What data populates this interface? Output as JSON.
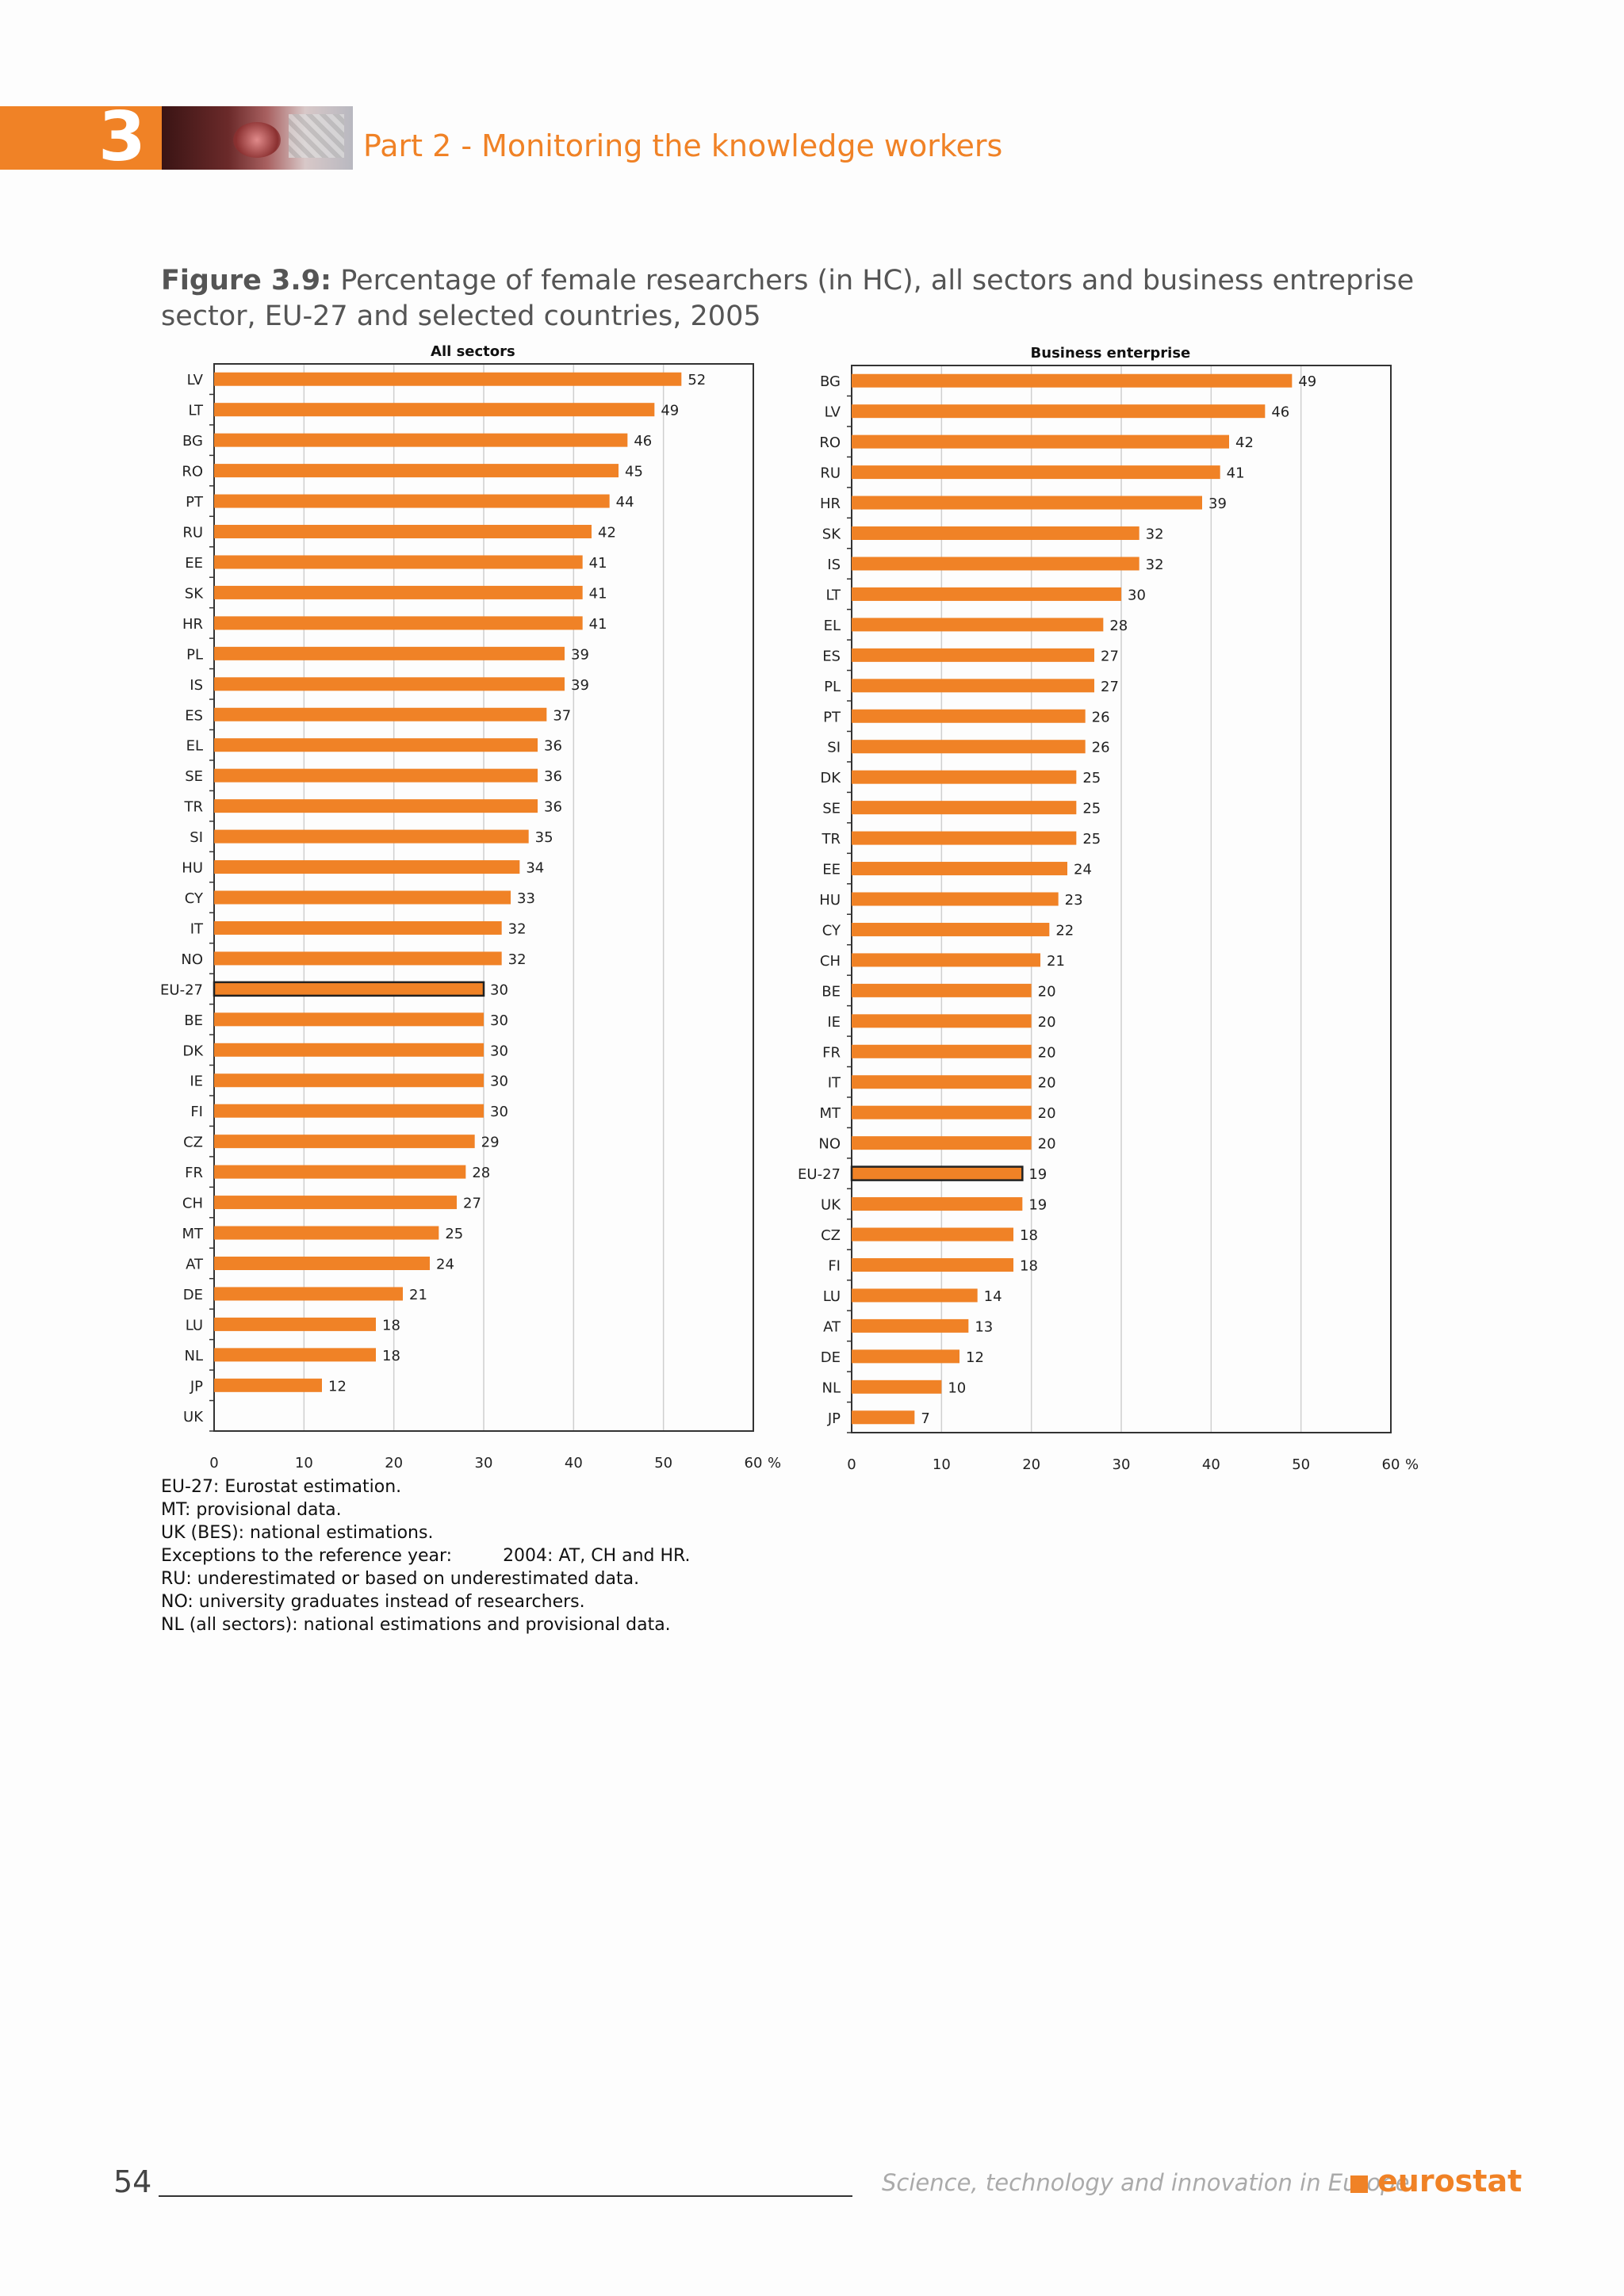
{
  "header": {
    "chapter_number": "3",
    "part_title": "Part 2 - Monitoring the knowledge workers"
  },
  "figure": {
    "number": "Figure 3.9:",
    "title": "Percentage of female researchers (in HC), all sectors and business entreprise sector, EU-27 and selected countries, 2005"
  },
  "colors": {
    "accent": "#f08226",
    "bar": "#f08226",
    "bar_highlight_border": "#222222",
    "grid": "#cfcfcf"
  },
  "chart_data": [
    {
      "type": "bar",
      "orientation": "horizontal",
      "title": "All sectors",
      "unit": "%",
      "xlim": [
        0,
        60
      ],
      "ticks": [
        "0",
        "10",
        "20",
        "30",
        "40",
        "50",
        "60"
      ],
      "grid": true,
      "highlight": "EU-27",
      "categories": [
        "LV",
        "LT",
        "BG",
        "RO",
        "PT",
        "RU",
        "EE",
        "SK",
        "HR",
        "PL",
        "IS",
        "ES",
        "EL",
        "SE",
        "TR",
        "SI",
        "HU",
        "CY",
        "IT",
        "NO",
        "EU-27",
        "BE",
        "DK",
        "IE",
        "FI",
        "CZ",
        "FR",
        "CH",
        "MT",
        "AT",
        "DE",
        "LU",
        "NL",
        "JP",
        "UK"
      ],
      "values": [
        52,
        49,
        46,
        45,
        44,
        42,
        41,
        41,
        41,
        39,
        39,
        37,
        36,
        36,
        36,
        35,
        34,
        33,
        32,
        32,
        30,
        30,
        30,
        30,
        30,
        29,
        28,
        27,
        25,
        24,
        21,
        18,
        18,
        12,
        null
      ]
    },
    {
      "type": "bar",
      "orientation": "horizontal",
      "title": "Business enterprise",
      "unit": "%",
      "xlim": [
        0,
        60
      ],
      "ticks": [
        "0",
        "10",
        "20",
        "30",
        "40",
        "50",
        "60"
      ],
      "grid": true,
      "highlight": "EU-27",
      "categories": [
        "BG",
        "LV",
        "RO",
        "RU",
        "HR",
        "SK",
        "IS",
        "LT",
        "EL",
        "ES",
        "PL",
        "PT",
        "SI",
        "DK",
        "SE",
        "TR",
        "EE",
        "HU",
        "CY",
        "CH",
        "BE",
        "IE",
        "FR",
        "IT",
        "MT",
        "NO",
        "EU-27",
        "UK",
        "CZ",
        "FI",
        "LU",
        "AT",
        "DE",
        "NL",
        "JP"
      ],
      "values": [
        49,
        46,
        42,
        41,
        39,
        32,
        32,
        30,
        28,
        27,
        27,
        26,
        26,
        25,
        25,
        25,
        24,
        23,
        22,
        21,
        20,
        20,
        20,
        20,
        20,
        20,
        19,
        19,
        18,
        18,
        14,
        13,
        12,
        10,
        7
      ]
    }
  ],
  "notes": [
    "EU-27: Eurostat estimation.",
    "MT: provisional data.",
    "UK (BES): national estimations.",
    "Exceptions to the reference year:",
    "2004: AT, CH and HR.",
    "RU: underestimated or based on underestimated data.",
    "NO: university graduates instead of researchers.",
    "NL (all sectors): national estimations and provisional data."
  ],
  "footer": {
    "page_number": "54",
    "publication_title": "Science, technology and innovation in Europe",
    "logo_text": "eurostat"
  }
}
